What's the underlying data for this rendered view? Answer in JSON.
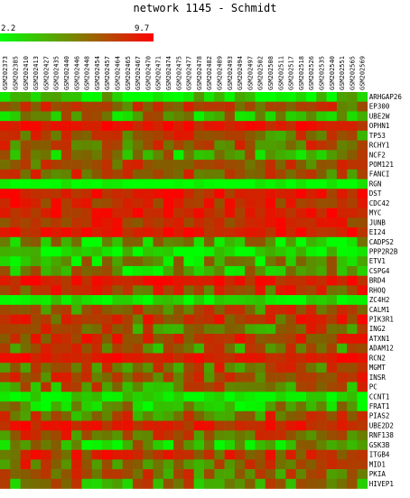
{
  "chart_data": {
    "type": "heatmap",
    "title": "network 1145 - Schmidt",
    "scale": {
      "min": 2.2,
      "max": 9.7,
      "min_label": "2.2",
      "max_label": "9.7",
      "low_color": "#00ff00",
      "high_color": "#ff0000"
    },
    "columns": [
      "GSM202373",
      "GSM202385",
      "GSM202410",
      "GSM202413",
      "GSM202427",
      "GSM202435",
      "GSM202440",
      "GSM202446",
      "GSM202448",
      "GSM202454",
      "GSM202457",
      "GSM202464",
      "GSM202465",
      "GSM202467",
      "GSM202470",
      "GSM202471",
      "GSM202474",
      "GSM202475",
      "GSM202477",
      "GSM202478",
      "GSM202482",
      "GSM202489",
      "GSM202493",
      "GSM202494",
      "GSM202497",
      "GSM202502",
      "GSM202508",
      "GSM202511",
      "GSM202517",
      "GSM202518",
      "GSM202526",
      "GSM202535",
      "GSM202540",
      "GSM202551",
      "GSM202565",
      "GSM202569"
    ],
    "rows": [
      "ARHGAP26",
      "EP300",
      "UBE2W",
      "OPHN1",
      "TP53",
      "RCHY1",
      "NCF2",
      "POM121",
      "FANCI",
      "RGN",
      "DST",
      "CDC42",
      "MYC",
      "JUNB",
      "EI24",
      "CADPS2",
      "PPP2R2B",
      "ETV1",
      "CSPG4",
      "BRD4",
      "RHOQ",
      "ZC4H2",
      "CALM1",
      "PIK3R1",
      "ING2",
      "ATXN1",
      "ADAM12",
      "RCN2",
      "MGMT",
      "INSR",
      "PC",
      "CCNT1",
      "FRAT1",
      "PIAS2",
      "UBE2D2",
      "RNF138",
      "GSK3B",
      "ITGB4",
      "MID1",
      "PKIA",
      "HIVEP1"
    ],
    "row_profiles": [
      {
        "base": 3.2,
        "spread": 1.8
      },
      {
        "base": 6.8,
        "spread": 2.0
      },
      {
        "base": 4.8,
        "spread": 2.4
      },
      {
        "base": 8.6,
        "spread": 1.2
      },
      {
        "base": 6.2,
        "spread": 2.6
      },
      {
        "base": 6.4,
        "spread": 2.2
      },
      {
        "base": 5.0,
        "spread": 2.6
      },
      {
        "base": 6.6,
        "spread": 2.2
      },
      {
        "base": 6.6,
        "spread": 2.2
      },
      {
        "base": 2.4,
        "spread": 0.6
      },
      {
        "base": 8.2,
        "spread": 1.4
      },
      {
        "base": 8.0,
        "spread": 1.6
      },
      {
        "base": 8.4,
        "spread": 1.4
      },
      {
        "base": 7.8,
        "spread": 1.8
      },
      {
        "base": 8.6,
        "spread": 1.2
      },
      {
        "base": 4.0,
        "spread": 2.6
      },
      {
        "base": 2.8,
        "spread": 1.4
      },
      {
        "base": 4.4,
        "spread": 2.4
      },
      {
        "base": 4.6,
        "spread": 2.6
      },
      {
        "base": 8.4,
        "spread": 1.4
      },
      {
        "base": 7.0,
        "spread": 2.2
      },
      {
        "base": 2.8,
        "spread": 1.0
      },
      {
        "base": 6.4,
        "spread": 2.4
      },
      {
        "base": 7.2,
        "spread": 2.2
      },
      {
        "base": 6.2,
        "spread": 2.6
      },
      {
        "base": 7.4,
        "spread": 2.0
      },
      {
        "base": 6.0,
        "spread": 2.6
      },
      {
        "base": 8.8,
        "spread": 1.0
      },
      {
        "base": 6.4,
        "spread": 2.4
      },
      {
        "base": 6.6,
        "spread": 2.4
      },
      {
        "base": 5.8,
        "spread": 2.6
      },
      {
        "base": 2.8,
        "spread": 1.2
      },
      {
        "base": 4.2,
        "spread": 2.2
      },
      {
        "base": 6.2,
        "spread": 2.6
      },
      {
        "base": 8.4,
        "spread": 1.4
      },
      {
        "base": 6.6,
        "spread": 2.4
      },
      {
        "base": 4.6,
        "spread": 2.4
      },
      {
        "base": 7.4,
        "spread": 2.2
      },
      {
        "base": 6.4,
        "spread": 2.6
      },
      {
        "base": 6.2,
        "spread": 2.4
      },
      {
        "base": 5.6,
        "spread": 2.6
      }
    ]
  }
}
